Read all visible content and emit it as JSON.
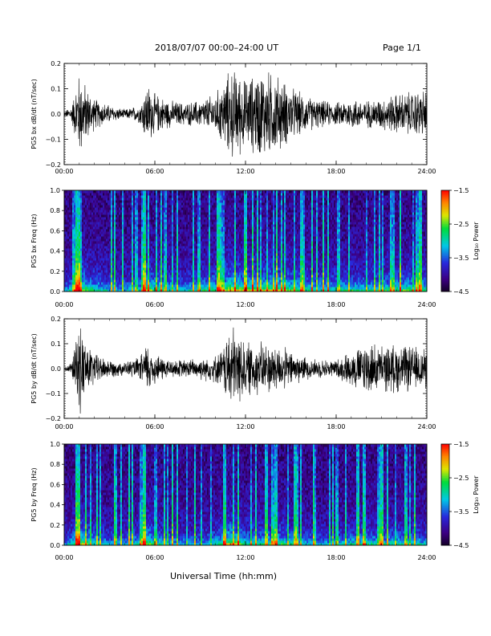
{
  "header": {
    "title": "2018/07/07   00:00–24:00 UT",
    "page": "Page 1/1"
  },
  "x_axis_title": "Universal Time (hh:mm)",
  "colors": {
    "trace": "#000000",
    "spectrogram_low": "#1a0033",
    "spectrogram_high": "#ff0000"
  },
  "chart_data": [
    {
      "type": "line",
      "ylabel": "PG5 bx dB/dt (nT/sec)",
      "xlim": [
        0,
        24
      ],
      "ylim": [
        -0.2,
        0.2
      ],
      "xticks": [
        "00:00",
        "06:00",
        "12:00",
        "18:00",
        "24:00"
      ],
      "yticks": [
        "0.2",
        "0.1",
        "0.0",
        "−0.1",
        "−0.2"
      ],
      "x_hours": [
        0.0,
        0.5,
        1.0,
        1.5,
        2.0,
        3.0,
        4.0,
        5.0,
        5.5,
        6.0,
        7.0,
        8.0,
        9.0,
        10.0,
        10.5,
        11.0,
        11.5,
        12.0,
        13.0,
        14.0,
        15.0,
        16.0,
        17.0,
        18.0,
        19.0,
        20.0,
        21.0,
        22.0,
        23.0,
        24.0
      ],
      "amplitude": [
        0.01,
        0.04,
        0.19,
        0.12,
        0.07,
        0.04,
        0.02,
        0.04,
        0.14,
        0.09,
        0.06,
        0.05,
        0.06,
        0.09,
        0.14,
        0.2,
        0.19,
        0.15,
        0.2,
        0.18,
        0.12,
        0.08,
        0.06,
        0.05,
        0.07,
        0.06,
        0.07,
        0.09,
        0.1,
        0.11
      ]
    },
    {
      "type": "heatmap",
      "ylabel": "PG5 bx Freq (Hz)",
      "xlim": [
        0,
        24
      ],
      "ylim": [
        0,
        1.0
      ],
      "xticks": [
        "00:00",
        "06:00",
        "12:00",
        "18:00",
        "24:00"
      ],
      "yticks": [
        "1.0",
        "0.8",
        "0.6",
        "0.4",
        "0.2",
        "0.0"
      ],
      "colorbar": {
        "label": "Log₁₀ Power",
        "ticks": [
          "−1.5",
          "−2.5",
          "−3.5",
          "−4.5"
        ],
        "range": [
          -4.5,
          -1.5
        ]
      },
      "x_hours": [
        0.0,
        0.5,
        1.0,
        1.5,
        2.0,
        3.0,
        4.0,
        5.0,
        5.5,
        6.0,
        7.0,
        8.0,
        9.0,
        10.0,
        10.5,
        11.0,
        11.5,
        12.0,
        13.0,
        14.0,
        15.0,
        16.0,
        17.0,
        18.0,
        19.0,
        20.0,
        21.0,
        22.0,
        23.0,
        24.0
      ],
      "activity": [
        0.3,
        0.6,
        0.9,
        0.7,
        0.6,
        0.45,
        0.4,
        0.5,
        0.85,
        0.65,
        0.55,
        0.5,
        0.55,
        0.65,
        0.7,
        0.9,
        0.85,
        0.75,
        0.8,
        0.8,
        0.7,
        0.6,
        0.55,
        0.55,
        0.6,
        0.55,
        0.6,
        0.65,
        0.65,
        0.6
      ]
    },
    {
      "type": "line",
      "ylabel": "PG5 by dB/dt (nT/sec)",
      "xlim": [
        0,
        24
      ],
      "ylim": [
        -0.2,
        0.2
      ],
      "xticks": [
        "00:00",
        "06:00",
        "12:00",
        "18:00",
        "24:00"
      ],
      "yticks": [
        "0.2",
        "0.1",
        "0.0",
        "−0.1",
        "−0.2"
      ],
      "x_hours": [
        0.0,
        0.5,
        1.0,
        1.5,
        2.0,
        3.0,
        4.0,
        5.0,
        5.5,
        6.0,
        7.0,
        8.0,
        9.0,
        10.0,
        10.5,
        11.0,
        11.5,
        12.0,
        13.0,
        14.0,
        15.0,
        16.0,
        17.0,
        18.0,
        19.0,
        20.0,
        21.0,
        22.0,
        23.0,
        24.0
      ],
      "amplitude": [
        0.01,
        0.03,
        0.2,
        0.12,
        0.07,
        0.04,
        0.03,
        0.05,
        0.12,
        0.07,
        0.04,
        0.04,
        0.05,
        0.06,
        0.09,
        0.2,
        0.17,
        0.12,
        0.12,
        0.11,
        0.08,
        0.05,
        0.04,
        0.04,
        0.08,
        0.12,
        0.1,
        0.11,
        0.1,
        0.09
      ]
    },
    {
      "type": "heatmap",
      "ylabel": "PG5 by Freq (Hz)",
      "xlim": [
        0,
        24
      ],
      "ylim": [
        0,
        1.0
      ],
      "xticks": [
        "00:00",
        "06:00",
        "12:00",
        "18:00",
        "24:00"
      ],
      "yticks": [
        "1.0",
        "0.8",
        "0.6",
        "0.4",
        "0.2",
        "0.0"
      ],
      "colorbar": {
        "label": "Log₁₀ Power",
        "ticks": [
          "−1.5",
          "−2.5",
          "−3.5",
          "−4.5"
        ],
        "range": [
          -4.5,
          -1.5
        ]
      },
      "x_hours": [
        0.0,
        0.5,
        1.0,
        1.5,
        2.0,
        3.0,
        4.0,
        5.0,
        5.5,
        6.0,
        7.0,
        8.0,
        9.0,
        10.0,
        10.5,
        11.0,
        11.5,
        12.0,
        13.0,
        14.0,
        15.0,
        16.0,
        17.0,
        18.0,
        19.0,
        20.0,
        21.0,
        22.0,
        23.0,
        24.0
      ],
      "activity": [
        0.3,
        0.55,
        0.9,
        0.65,
        0.55,
        0.4,
        0.4,
        0.55,
        0.8,
        0.6,
        0.45,
        0.4,
        0.4,
        0.5,
        0.65,
        0.9,
        0.75,
        0.6,
        0.6,
        0.65,
        0.55,
        0.45,
        0.4,
        0.4,
        0.5,
        0.55,
        0.5,
        0.55,
        0.5,
        0.45
      ]
    }
  ]
}
